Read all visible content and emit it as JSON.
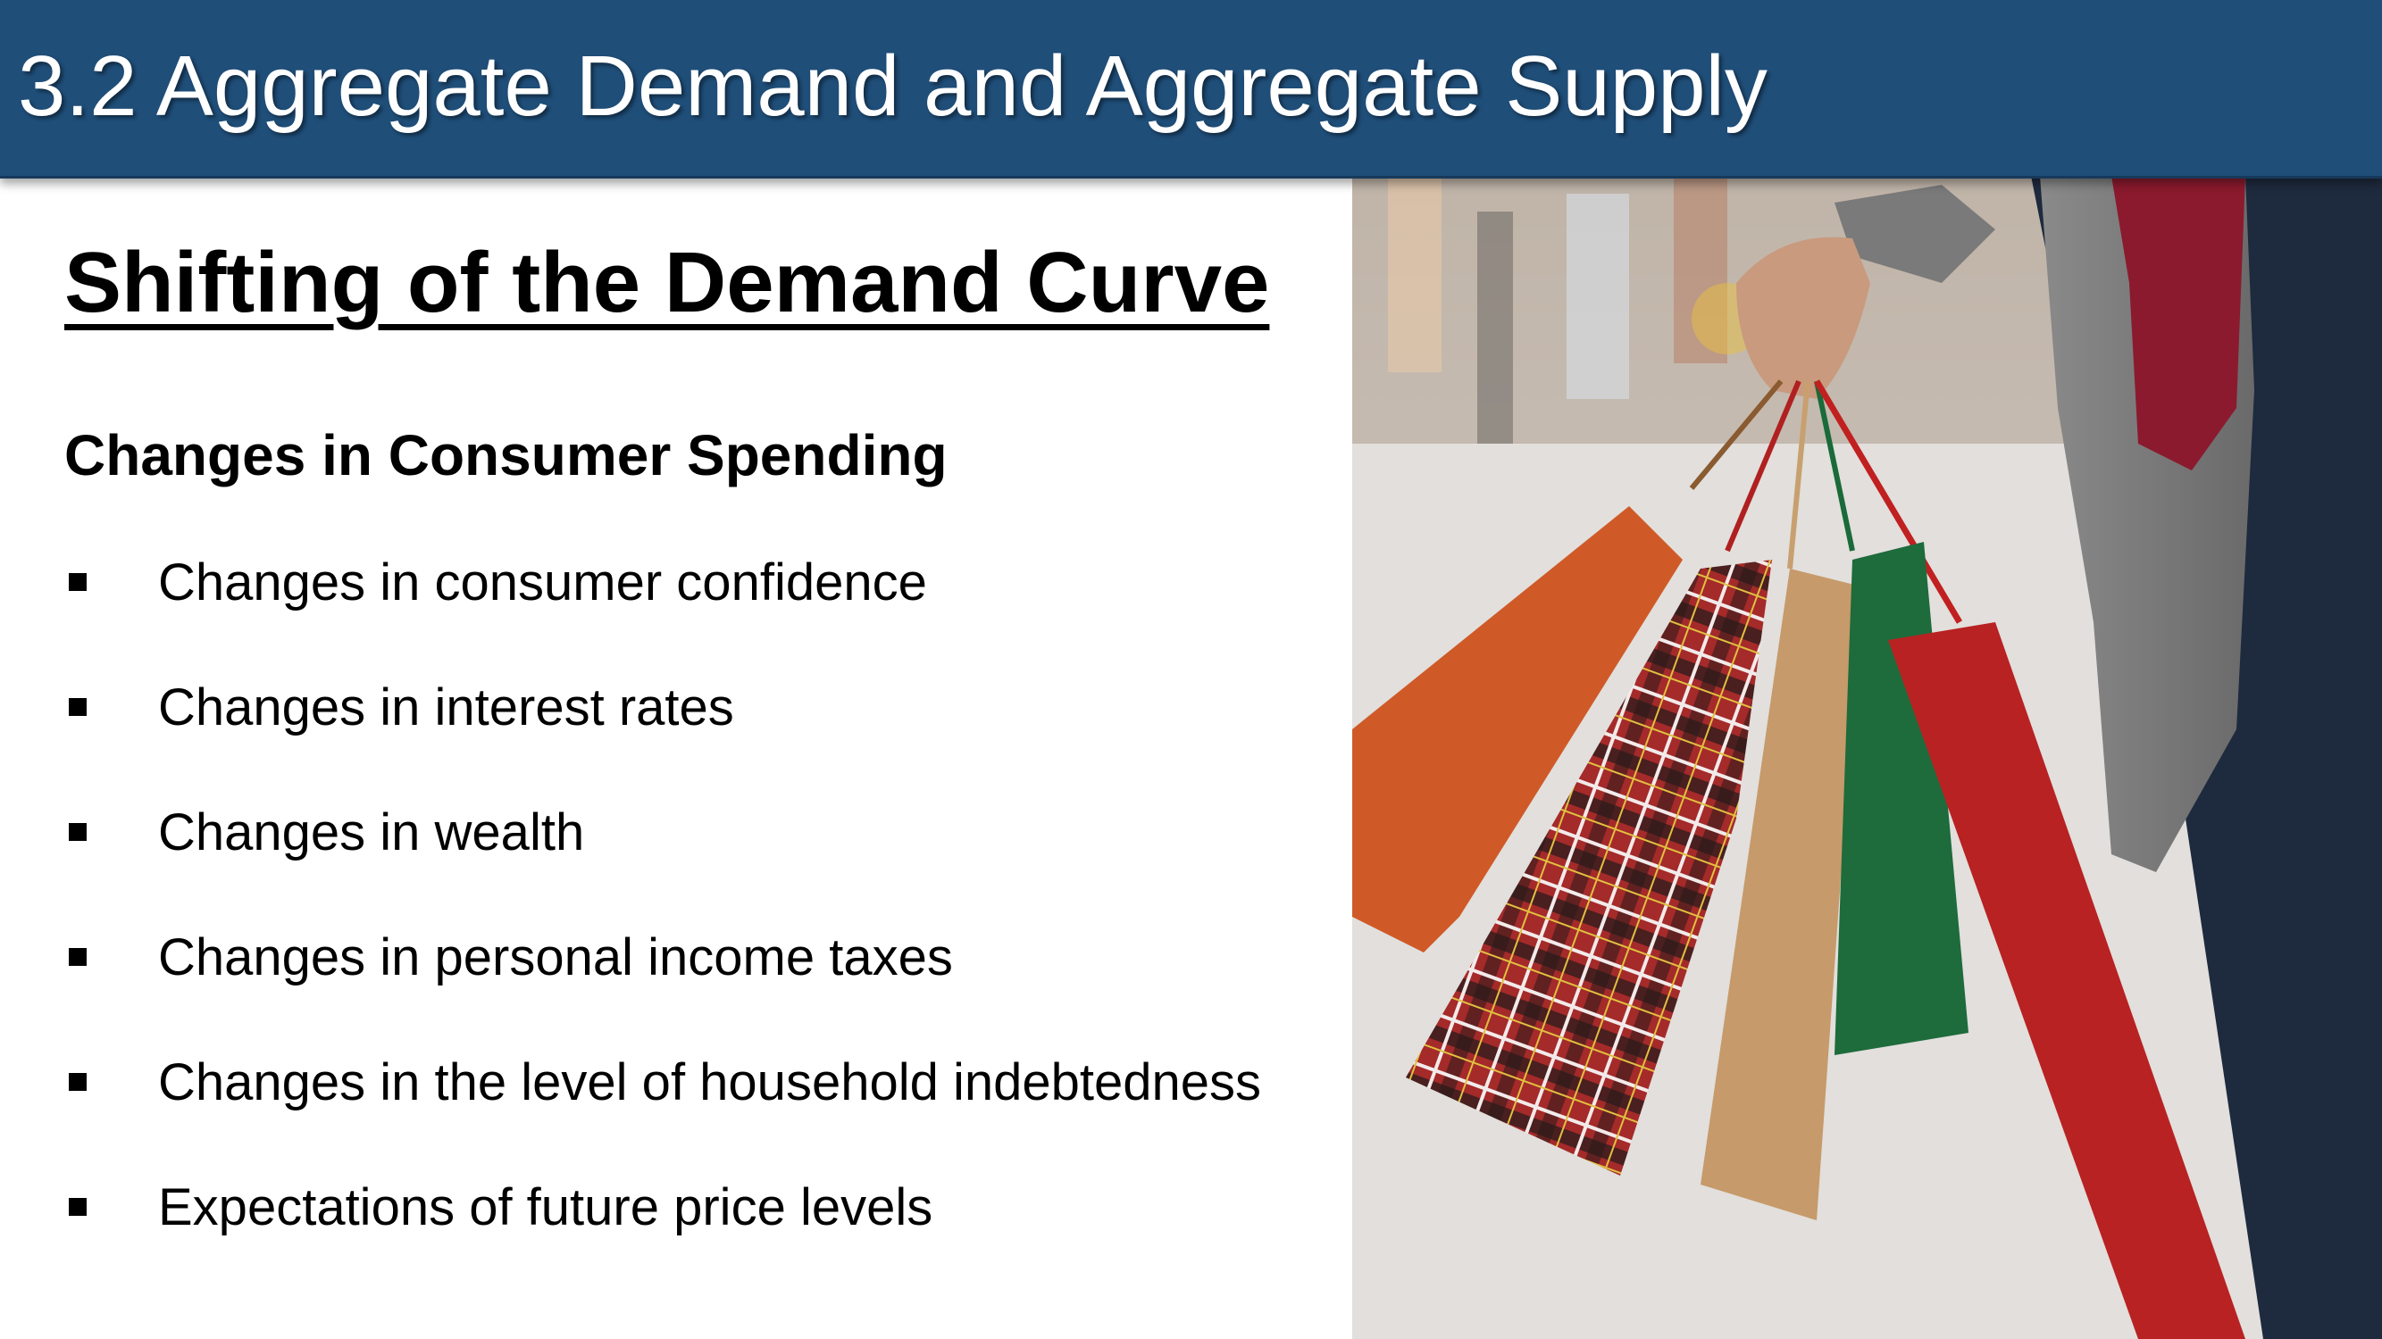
{
  "header": {
    "title": "3.2 Aggregate Demand and Aggregate Supply"
  },
  "slide": {
    "heading": "Shifting of the Demand Curve",
    "subheading": "Changes in Consumer Spending",
    "bullets": [
      "Changes in consumer confidence",
      "Changes in interest rates",
      "Changes in wealth",
      "Changes in personal income taxes",
      "Changes in the level of household indebtedness",
      "Expectations of future price levels"
    ]
  },
  "colors": {
    "header_bg": "#1f4e79",
    "text": "#000000"
  },
  "image": {
    "icon": "shopping-bags-photo-icon"
  }
}
